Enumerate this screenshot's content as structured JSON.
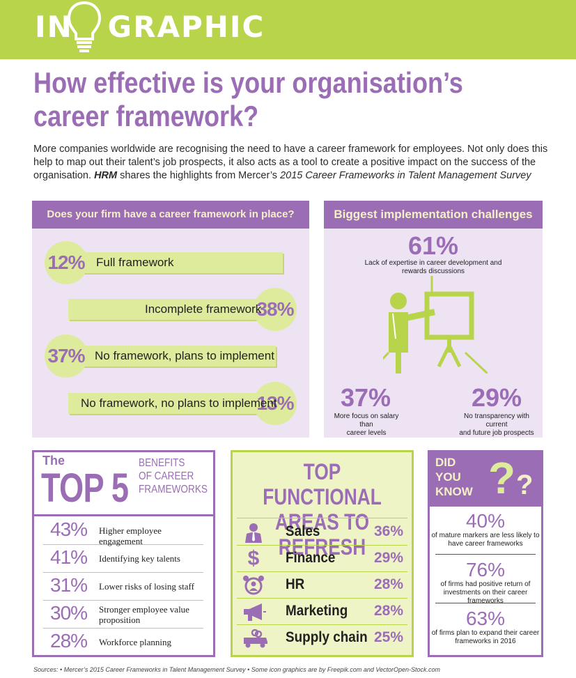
{
  "banner": {
    "title_pre": "IN",
    "title_post": "GRAPHIC",
    "bg_color": "#b7d44a"
  },
  "headline": {
    "line1": "How effective is your organisation’s",
    "line2": "career framework?"
  },
  "intro": {
    "text": "More companies worldwide are recognising the need to have a career framework for employees. Not only does this help to map out their talent’s job prospects, it also acts as a tool to create a positive impact on the success of the organisation.",
    "brand": "HRM",
    "shares": " shares the highlights from Mercer’s ",
    "survey": "2015 Career Frameworks in Talent Management Survey"
  },
  "framework": {
    "title": "Does your firm have a career framework in place?",
    "items": [
      {
        "pct": "12%",
        "label": "Full framework"
      },
      {
        "pct": "38%",
        "label": "Incomplete framework"
      },
      {
        "pct": "37%",
        "label": "No framework, plans to implement"
      },
      {
        "pct": "13%",
        "label": "No framework, no plans to implement"
      }
    ]
  },
  "challenges": {
    "title": "Biggest implementation challenges",
    "items": [
      {
        "pct": "61%",
        "label_line1": "Lack of expertise in career development and",
        "label_line2": "rewards discussions"
      },
      {
        "pct": "37%",
        "label_line1": "More focus on salary than",
        "label_line2": "career levels"
      },
      {
        "pct": "29%",
        "label_line1": "No transparency with current",
        "label_line2": "and future job prospects"
      }
    ]
  },
  "top5": {
    "the": "The",
    "top": "TOP 5",
    "sub_line1": "BENEFITS",
    "sub_line2": "OF CAREER",
    "sub_line3": "FRAMEWORKS",
    "items": [
      {
        "pct": "43%",
        "label": "Higher employee engagement"
      },
      {
        "pct": "41%",
        "label": "Identifying key talents"
      },
      {
        "pct": "31%",
        "label": "Lower risks of losing staff"
      },
      {
        "pct": "30%",
        "label": "Stronger employee value proposition"
      },
      {
        "pct": "28%",
        "label": "Workforce planning"
      }
    ]
  },
  "functional": {
    "title_line1": "TOP FUNCTIONAL",
    "title_line2": "AREAS TO REFRESH",
    "items": [
      {
        "name": "Sales",
        "pct": "36%",
        "icon": "salesperson-icon"
      },
      {
        "name": "Finance",
        "pct": "29%",
        "icon": "dollar-icon"
      },
      {
        "name": "HR",
        "pct": "28%",
        "icon": "alarm-clock-person-icon"
      },
      {
        "name": "Marketing",
        "pct": "28%",
        "icon": "megaphone-icon"
      },
      {
        "name": "Supply chain",
        "pct": "25%",
        "icon": "truck-icon"
      }
    ]
  },
  "did_you_know": {
    "word1": "DID",
    "word2": "YOU",
    "word3": "KNOW",
    "q1": "?",
    "q2": "?",
    "items": [
      {
        "pct": "40%",
        "label_line1": "of mature markers are less likely to",
        "label_line2": "have career frameworks"
      },
      {
        "pct": "76%",
        "label_line1": "of firms had positive return of",
        "label_line2": "investments on their career frameworks"
      },
      {
        "pct": "63%",
        "label_line1": "of firms plan to expand their career",
        "label_line2": "frameworks in 2016"
      }
    ]
  },
  "sources": "Sources: • Mercer’s 2015 Career Frameworks in Talent Management Survey • Some icon graphics are by Freepik.com and VectorOpen-Stock.com",
  "colors": {
    "purple": "#9b6db5",
    "green": "#b7d44a",
    "light_green": "#dfeb9c",
    "lavender": "#ede3f2"
  }
}
